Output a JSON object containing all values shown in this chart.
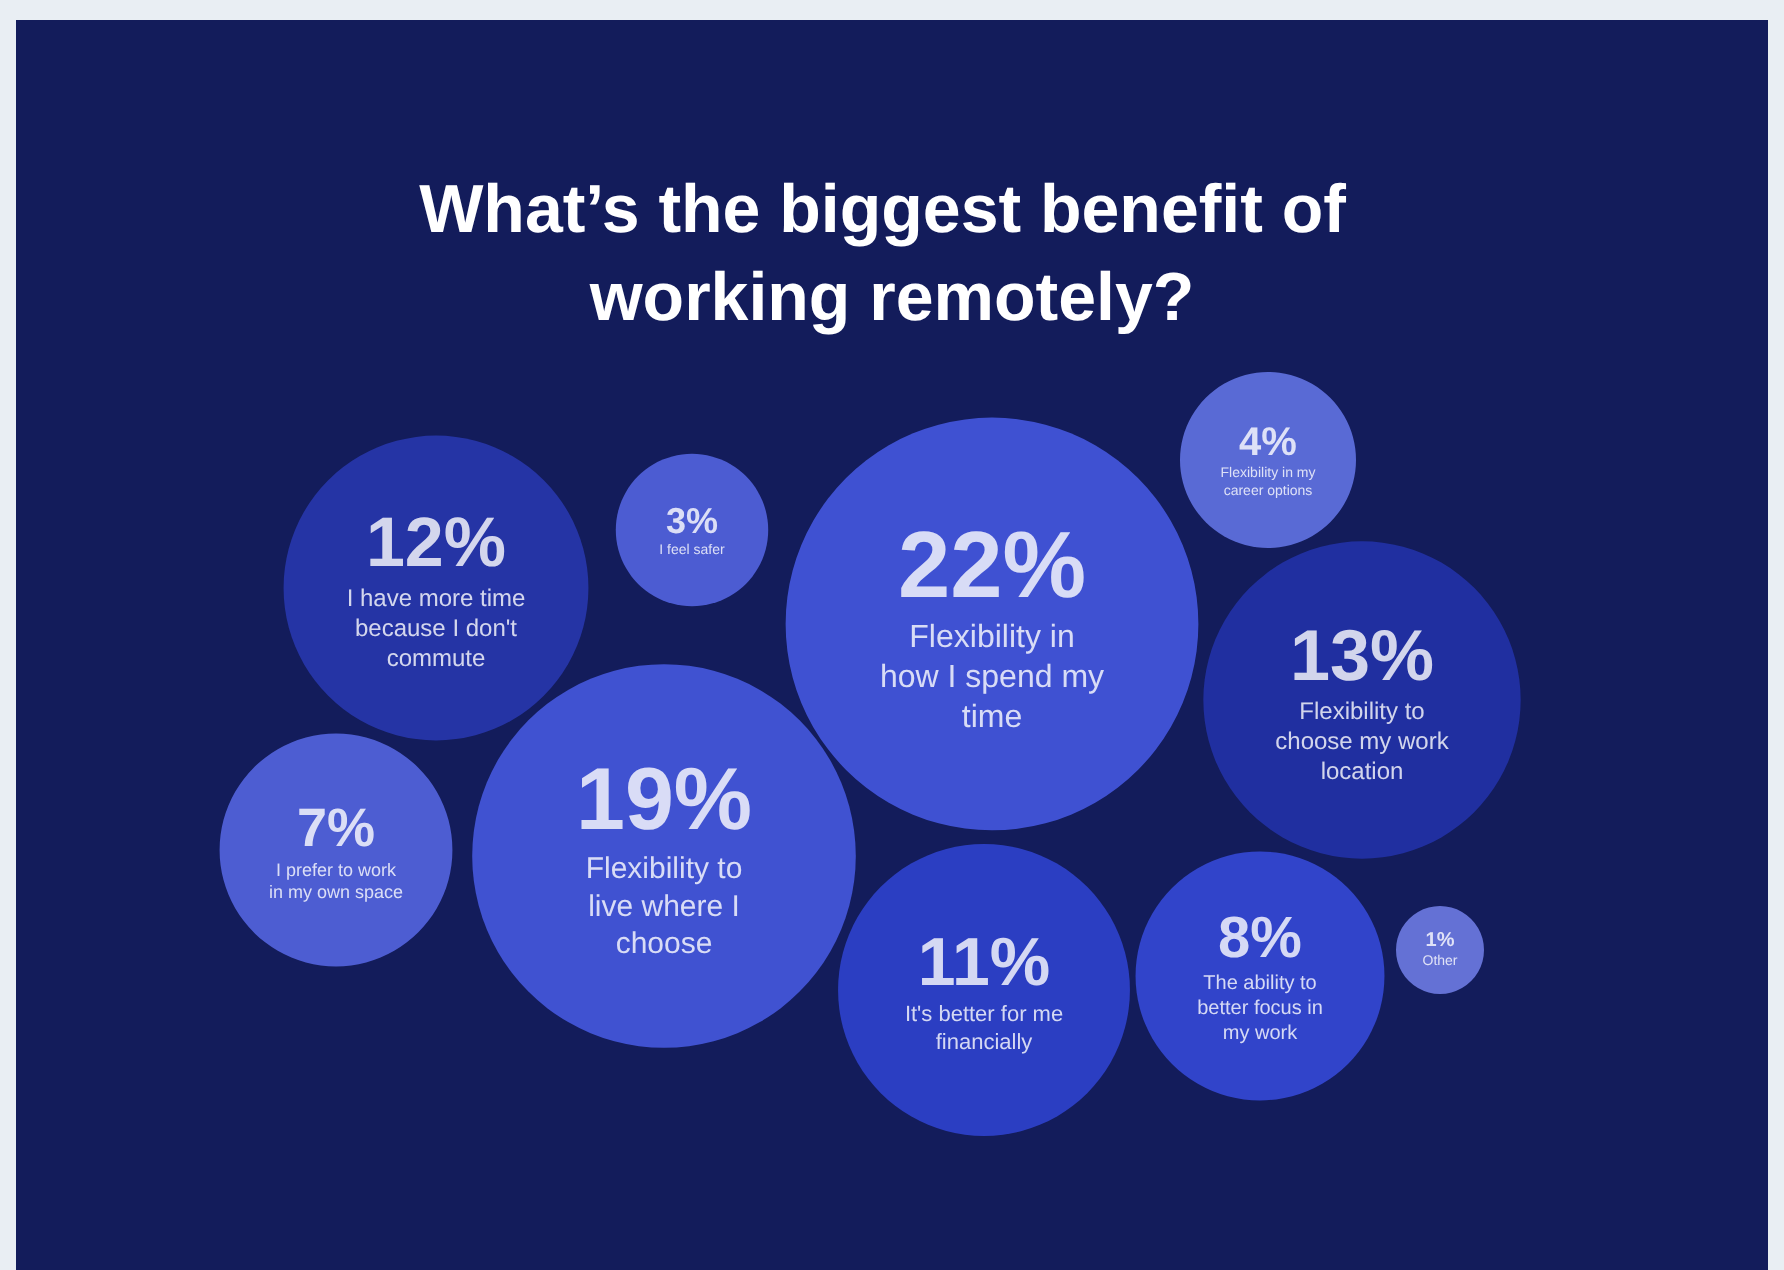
{
  "chart_data": {
    "type": "other",
    "title": "What’s the biggest benefit of working remotely?",
    "categories": [
      "Flexibility in how I spend my time",
      "Flexibility to live where I choose",
      "Flexibility to choose my work location",
      "I have more time because I don't commute",
      "It's better for me financially",
      "The ability to better focus in my work",
      "I prefer to work in my own space",
      "Flexibility in my career options",
      "I feel safer",
      "Other"
    ],
    "values": [
      22,
      19,
      13,
      12,
      11,
      8,
      7,
      4,
      3,
      1
    ],
    "value_labels": [
      "22%",
      "19%",
      "13%",
      "12%",
      "11%",
      "8%",
      "7%",
      "4%",
      "3%",
      "1%"
    ],
    "colors": [
      "#4b5ff0",
      "#4c60ef",
      "#2434b2",
      "#2a3bb8",
      "#3247dc",
      "#3a4fe6",
      "#5c6ef0",
      "#6b7ef4",
      "#5b6df0",
      "#7987f4"
    ]
  }
}
